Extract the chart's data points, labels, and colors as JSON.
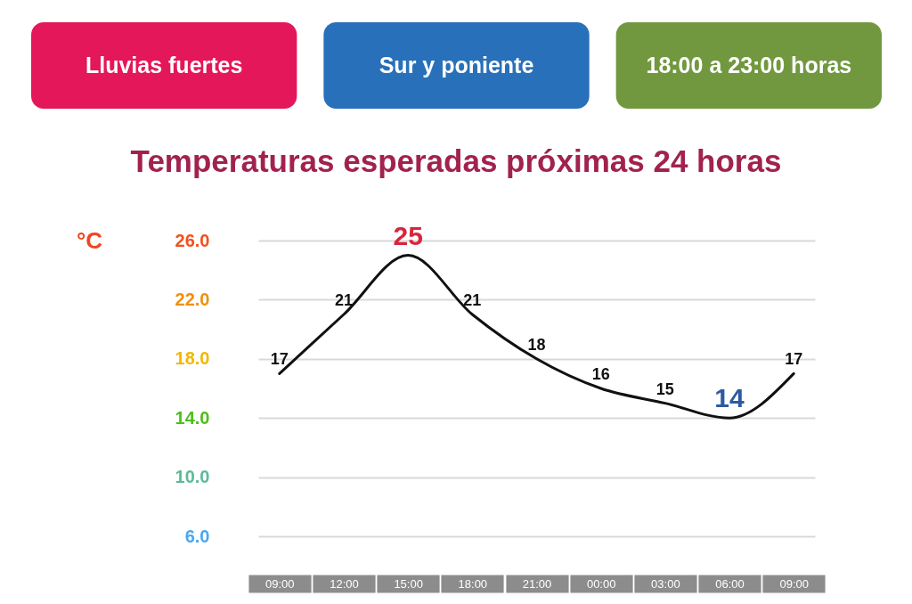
{
  "chart_data": {
    "type": "line",
    "title": "Temperaturas esperadas próximas 24 horas",
    "ylabel": "°C",
    "annotations": [
      "Lluvias fuertes",
      "Sur y poniente",
      "18:00 a 23:00 horas"
    ],
    "categories": [
      "09:00",
      "12:00",
      "15:00",
      "18:00",
      "21:00",
      "00:00",
      "03:00",
      "06:00",
      "09:00"
    ],
    "series": [
      {
        "color": "#111111",
        "values": [
          17,
          21,
          25,
          21,
          18,
          16,
          15,
          14,
          17
        ]
      }
    ],
    "ylim": [
      6,
      26
    ],
    "yticks": [
      {
        "value": 6,
        "label": "6.0"
      },
      {
        "value": 10,
        "label": "10.0"
      },
      {
        "value": 14,
        "label": "14.0"
      },
      {
        "value": 18,
        "label": "18.0"
      },
      {
        "value": 22,
        "label": "22.0"
      },
      {
        "value": 26,
        "label": "26.0"
      }
    ],
    "grid": "y",
    "legend": false,
    "marker": "none",
    "line_style": "solid",
    "data_labels": true
  }
}
